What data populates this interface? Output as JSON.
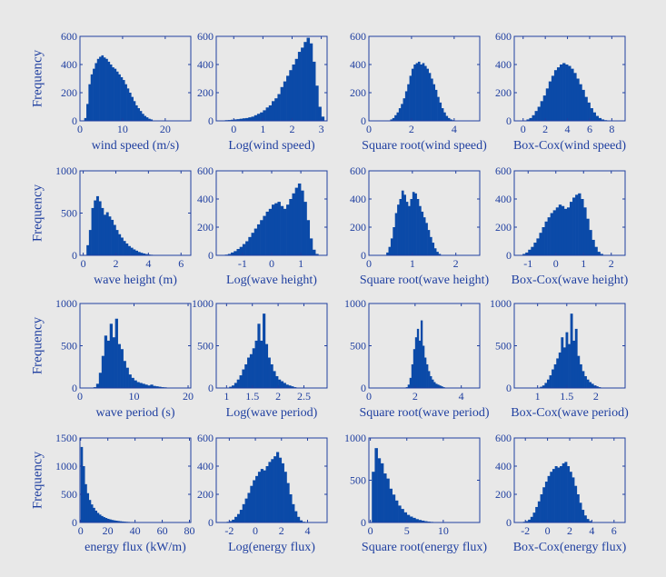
{
  "figure": {
    "background": "#e8e8e8",
    "bar_color": "#0b4aa8",
    "axis_color": "#1f3fa0",
    "ylabel": "Frequency"
  },
  "chart_data": [
    {
      "type": "bar",
      "xlabel": "wind speed (m/s)",
      "xlim": [
        0,
        26
      ],
      "ylim": [
        0,
        600
      ],
      "xticks": [
        0,
        10,
        20
      ],
      "xticklabels": [
        "0",
        "10",
        "20"
      ],
      "yticks": [
        0,
        200,
        400,
        600
      ],
      "yticklabels": [
        "0",
        "200",
        "400",
        "600"
      ],
      "bin_start": 1,
      "bin_width": 0.5,
      "values": [
        20,
        120,
        260,
        330,
        370,
        410,
        440,
        455,
        465,
        450,
        440,
        420,
        400,
        380,
        370,
        350,
        330,
        310,
        290,
        260,
        230,
        200,
        170,
        140,
        110,
        90,
        70,
        50,
        35,
        25,
        15,
        10
      ]
    },
    {
      "type": "bar",
      "xlabel": "Log(wind speed)",
      "xlim": [
        -0.6,
        3.2
      ],
      "ylim": [
        0,
        600
      ],
      "xticks": [
        0,
        1,
        2,
        3
      ],
      "xticklabels": [
        "0",
        "1",
        "2",
        "3"
      ],
      "yticks": [
        0,
        200,
        400,
        600
      ],
      "yticklabels": [
        "0",
        "200",
        "400",
        "600"
      ],
      "bin_start": -0.4,
      "bin_width": 0.1,
      "values": [
        3,
        5,
        6,
        8,
        10,
        12,
        15,
        18,
        20,
        25,
        30,
        40,
        50,
        60,
        75,
        95,
        110,
        140,
        160,
        190,
        240,
        280,
        320,
        360,
        400,
        440,
        490,
        520,
        560,
        590,
        550,
        420,
        250,
        100,
        30
      ]
    },
    {
      "type": "bar",
      "xlabel": "Square root(wind speed)",
      "xlim": [
        0,
        5.2
      ],
      "ylim": [
        0,
        600
      ],
      "xticks": [
        0,
        2,
        4
      ],
      "xticklabels": [
        "0",
        "2",
        "4"
      ],
      "yticks": [
        0,
        200,
        400,
        600
      ],
      "yticklabels": [
        "0",
        "200",
        "400",
        "600"
      ],
      "bin_start": 1.0,
      "bin_width": 0.1,
      "values": [
        10,
        20,
        40,
        60,
        90,
        120,
        160,
        210,
        260,
        320,
        370,
        400,
        410,
        420,
        400,
        410,
        390,
        370,
        340,
        300,
        260,
        220,
        170,
        130,
        90,
        60,
        35,
        20,
        10,
        5
      ]
    },
    {
      "type": "bar",
      "xlabel": "Box-Cox(wind speed)",
      "xlim": [
        -0.8,
        9.2
      ],
      "ylim": [
        0,
        600
      ],
      "xticks": [
        0,
        2,
        4,
        6,
        8
      ],
      "xticklabels": [
        "0",
        "2",
        "4",
        "6",
        "8"
      ],
      "yticks": [
        0,
        200,
        400,
        600
      ],
      "yticklabels": [
        "0",
        "200",
        "400",
        "600"
      ],
      "bin_start": 0.3,
      "bin_width": 0.25,
      "values": [
        10,
        20,
        40,
        70,
        100,
        140,
        180,
        230,
        280,
        320,
        360,
        380,
        400,
        410,
        400,
        390,
        370,
        340,
        300,
        260,
        220,
        170,
        130,
        90,
        60,
        35,
        20,
        10,
        5
      ]
    },
    {
      "type": "bar",
      "xlabel": "wave height (m)",
      "xlim": [
        -0.2,
        6.6
      ],
      "ylim": [
        0,
        1000
      ],
      "xticks": [
        0,
        2,
        4,
        6
      ],
      "xticklabels": [
        "0",
        "2",
        "4",
        "6"
      ],
      "yticks": [
        0,
        500,
        1000
      ],
      "yticklabels": [
        "0",
        "500",
        "1000"
      ],
      "bin_start": 0.2,
      "bin_width": 0.15,
      "values": [
        120,
        300,
        560,
        650,
        700,
        640,
        560,
        480,
        510,
        460,
        420,
        360,
        300,
        250,
        210,
        170,
        140,
        110,
        90,
        70,
        55,
        40,
        30,
        22,
        15,
        10,
        7,
        5
      ]
    },
    {
      "type": "bar",
      "xlabel": "Log(wave height)",
      "xlim": [
        -1.9,
        1.9
      ],
      "ylim": [
        0,
        600
      ],
      "xticks": [
        -1,
        0,
        1
      ],
      "xticklabels": [
        "-1",
        "0",
        "1"
      ],
      "yticks": [
        0,
        200,
        400,
        600
      ],
      "yticklabels": [
        "0",
        "200",
        "400",
        "600"
      ],
      "bin_start": -1.6,
      "bin_width": 0.1,
      "values": [
        5,
        10,
        20,
        30,
        45,
        60,
        80,
        100,
        130,
        160,
        190,
        220,
        250,
        280,
        310,
        330,
        360,
        370,
        380,
        350,
        330,
        360,
        400,
        440,
        480,
        510,
        460,
        380,
        250,
        120,
        40,
        10
      ]
    },
    {
      "type": "bar",
      "xlabel": "Square root(wave height)",
      "xlim": [
        0,
        2.55
      ],
      "ylim": [
        0,
        600
      ],
      "xticks": [
        0,
        1,
        2
      ],
      "xticklabels": [
        "0",
        "1",
        "2"
      ],
      "yticks": [
        0,
        200,
        400,
        600
      ],
      "yticklabels": [
        "0",
        "200",
        "400",
        "600"
      ],
      "bin_start": 0.4,
      "bin_width": 0.05,
      "values": [
        20,
        60,
        120,
        200,
        300,
        360,
        400,
        460,
        430,
        380,
        350,
        400,
        450,
        440,
        400,
        350,
        310,
        270,
        230,
        180,
        130,
        90,
        50,
        25,
        10
      ]
    },
    {
      "type": "bar",
      "xlabel": "Box-Cox(wave height)",
      "xlim": [
        -1.5,
        2.5
      ],
      "ylim": [
        0,
        600
      ],
      "xticks": [
        -1,
        0,
        1,
        2
      ],
      "xticklabels": [
        "-1",
        "0",
        "1",
        "2"
      ],
      "yticks": [
        0,
        200,
        400,
        600
      ],
      "yticklabels": [
        "0",
        "200",
        "400",
        "600"
      ],
      "bin_start": -1.2,
      "bin_width": 0.1,
      "values": [
        10,
        20,
        40,
        60,
        90,
        120,
        160,
        200,
        240,
        270,
        300,
        320,
        340,
        360,
        350,
        330,
        340,
        380,
        410,
        430,
        440,
        400,
        340,
        260,
        180,
        110,
        60,
        25,
        10
      ]
    },
    {
      "type": "bar",
      "xlabel": "wave period (s)",
      "xlim": [
        0,
        20.5
      ],
      "ylim": [
        0,
        1000
      ],
      "xticks": [
        0,
        10,
        20
      ],
      "xticklabels": [
        "0",
        "10",
        "20"
      ],
      "yticks": [
        0,
        500,
        1000
      ],
      "yticklabels": [
        "0",
        "500",
        "1000"
      ],
      "bin_start": 2.5,
      "bin_width": 0.5,
      "values": [
        10,
        50,
        180,
        380,
        620,
        560,
        760,
        600,
        820,
        520,
        460,
        320,
        240,
        160,
        120,
        90,
        70,
        60,
        50,
        40,
        30,
        40,
        25,
        20,
        15,
        10,
        8
      ]
    },
    {
      "type": "bar",
      "xlabel": "Log(wave period)",
      "xlim": [
        0.8,
        2.95
      ],
      "ylim": [
        0,
        1000
      ],
      "xticks": [
        1,
        1.5,
        2,
        2.5
      ],
      "xticklabels": [
        "1",
        "1.5",
        "2",
        "2.5"
      ],
      "yticks": [
        0,
        500,
        1000
      ],
      "yticklabels": [
        "0",
        "500",
        "1000"
      ],
      "bin_start": 1.0,
      "bin_width": 0.05,
      "values": [
        5,
        15,
        30,
        60,
        100,
        150,
        220,
        280,
        360,
        400,
        470,
        560,
        760,
        560,
        880,
        520,
        360,
        280,
        200,
        140,
        100,
        80,
        60,
        40,
        30,
        20,
        10
      ]
    },
    {
      "type": "bar",
      "xlabel": "Square root(wave period)",
      "xlim": [
        0,
        4.8
      ],
      "ylim": [
        0,
        1000
      ],
      "xticks": [
        0,
        2,
        4
      ],
      "xticklabels": [
        "0",
        "2",
        "4"
      ],
      "yticks": [
        0,
        500,
        1000
      ],
      "yticklabels": [
        "0",
        "500",
        "1000"
      ],
      "bin_start": 1.6,
      "bin_width": 0.08,
      "values": [
        10,
        40,
        120,
        280,
        460,
        600,
        700,
        560,
        800,
        500,
        360,
        280,
        200,
        140,
        100,
        70,
        50,
        40,
        30,
        20,
        10
      ]
    },
    {
      "type": "bar",
      "xlabel": "Box-Cox(wave period)",
      "xlim": [
        0.6,
        2.5
      ],
      "ylim": [
        0,
        1000
      ],
      "xticks": [
        1,
        1.5,
        2
      ],
      "xticklabels": [
        "1",
        "1.5",
        "2"
      ],
      "yticks": [
        0,
        500,
        1000
      ],
      "yticklabels": [
        "0",
        "500",
        "1000"
      ],
      "bin_start": 1.0,
      "bin_width": 0.04,
      "values": [
        5,
        15,
        30,
        60,
        100,
        150,
        220,
        280,
        350,
        420,
        600,
        480,
        660,
        520,
        880,
        560,
        700,
        380,
        280,
        200,
        140,
        100,
        70,
        50,
        30,
        20,
        10
      ]
    },
    {
      "type": "bar",
      "xlabel": "energy flux (kW/m)",
      "xlim": [
        -0.5,
        81
      ],
      "ylim": [
        0,
        1500
      ],
      "xticks": [
        0,
        20,
        40,
        60,
        80
      ],
      "xticklabels": [
        "0",
        "20",
        "40",
        "60",
        "80"
      ],
      "yticks": [
        0,
        500,
        1000,
        1500
      ],
      "yticklabels": [
        "0",
        "500",
        "1000",
        "1500"
      ],
      "bin_start": 0,
      "bin_width": 1.5,
      "values": [
        1340,
        1000,
        680,
        520,
        400,
        320,
        260,
        210,
        170,
        140,
        115,
        95,
        80,
        65,
        55,
        45,
        38,
        32,
        27,
        22,
        18,
        15,
        12,
        10,
        8,
        7,
        6,
        5,
        4,
        3,
        3,
        2,
        2,
        2,
        1,
        1,
        1,
        1
      ]
    },
    {
      "type": "bar",
      "xlabel": "Log(energy flux)",
      "xlim": [
        -3,
        5.5
      ],
      "ylim": [
        0,
        600
      ],
      "xticks": [
        -2,
        0,
        2,
        4
      ],
      "xticklabels": [
        "-2",
        "0",
        "2",
        "4"
      ],
      "yticks": [
        0,
        200,
        400,
        600
      ],
      "yticklabels": [
        "0",
        "200",
        "400",
        "600"
      ],
      "bin_start": -2.2,
      "bin_width": 0.2,
      "values": [
        5,
        10,
        20,
        40,
        60,
        90,
        130,
        170,
        210,
        260,
        300,
        330,
        360,
        380,
        370,
        400,
        430,
        450,
        470,
        500,
        460,
        420,
        360,
        280,
        200,
        130,
        80,
        40,
        15,
        5
      ]
    },
    {
      "type": "bar",
      "xlabel": "Square root(energy flux)",
      "xlim": [
        -0.2,
        15
      ],
      "ylim": [
        0,
        1000
      ],
      "xticks": [
        0,
        5,
        10
      ],
      "xticklabels": [
        "0",
        "5",
        "10"
      ],
      "yticks": [
        0,
        500,
        1000
      ],
      "yticklabels": [
        "0",
        "500",
        "1000"
      ],
      "bin_start": 0.2,
      "bin_width": 0.4,
      "values": [
        600,
        880,
        760,
        700,
        580,
        520,
        400,
        330,
        260,
        200,
        160,
        120,
        90,
        70,
        55,
        40,
        30,
        22,
        15,
        10,
        7,
        5,
        3
      ]
    },
    {
      "type": "bar",
      "xlabel": "Box-Cox(energy flux)",
      "xlim": [
        -3,
        7
      ],
      "ylim": [
        0,
        600
      ],
      "xticks": [
        -2,
        0,
        2,
        4,
        6
      ],
      "xticklabels": [
        "-2",
        "0",
        "2",
        "4",
        "6"
      ],
      "yticks": [
        0,
        200,
        400,
        600
      ],
      "yticklabels": [
        "0",
        "200",
        "400",
        "600"
      ],
      "bin_start": -2.2,
      "bin_width": 0.22,
      "values": [
        5,
        10,
        20,
        40,
        70,
        110,
        150,
        200,
        250,
        290,
        330,
        360,
        380,
        400,
        390,
        400,
        420,
        430,
        400,
        360,
        320,
        260,
        200,
        140,
        90,
        50,
        25,
        10
      ]
    }
  ]
}
